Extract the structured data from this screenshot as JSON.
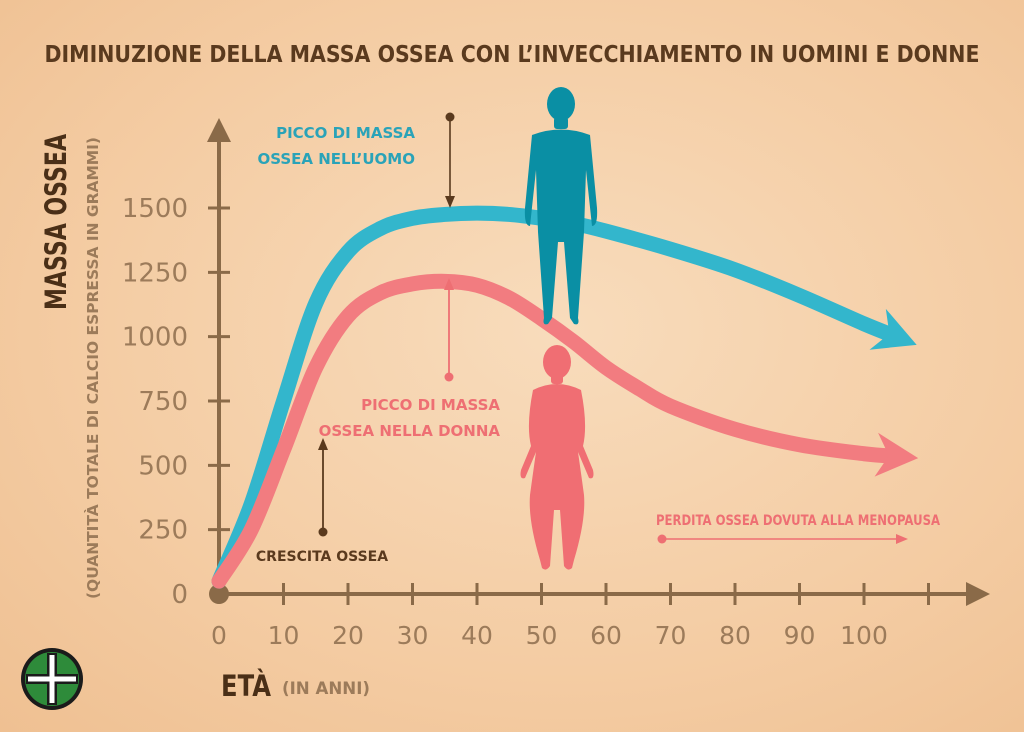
{
  "chart_data": {
    "type": "line",
    "title": "DIMINUZIONE DELLA MASSA OSSEA CON L’INVECCHIAMENTO IN UOMINI E DONNE",
    "ylabel": "MASSA OSSEA",
    "ylabel_sub": "(QUANTITÀ TOTALE DI CALCIO ESPRESSA IN GRAMMI)",
    "xlabel": "ETÀ",
    "xlabel_sub": "(IN ANNI)",
    "xlim": [
      0,
      110
    ],
    "ylim": [
      0,
      1700
    ],
    "x_ticks": [
      0,
      10,
      20,
      30,
      40,
      50,
      60,
      70,
      80,
      90,
      100
    ],
    "y_ticks": [
      0,
      250,
      500,
      750,
      1000,
      1250,
      1500
    ],
    "series": [
      {
        "color": "#33b6cc",
        "points": [
          [
            0,
            50
          ],
          [
            5,
            350
          ],
          [
            10,
            750
          ],
          [
            15,
            1130
          ],
          [
            20,
            1330
          ],
          [
            25,
            1420
          ],
          [
            30,
            1460
          ],
          [
            35,
            1475
          ],
          [
            40,
            1480
          ],
          [
            45,
            1475
          ],
          [
            50,
            1460
          ],
          [
            55,
            1440
          ],
          [
            60,
            1410
          ],
          [
            70,
            1340
          ],
          [
            80,
            1260
          ],
          [
            90,
            1160
          ],
          [
            100,
            1050
          ],
          [
            105,
            1000
          ]
        ]
      },
      {
        "color": "#f27c80",
        "points": [
          [
            0,
            50
          ],
          [
            5,
            250
          ],
          [
            10,
            560
          ],
          [
            15,
            880
          ],
          [
            20,
            1080
          ],
          [
            25,
            1170
          ],
          [
            30,
            1205
          ],
          [
            35,
            1215
          ],
          [
            40,
            1200
          ],
          [
            45,
            1150
          ],
          [
            50,
            1070
          ],
          [
            55,
            980
          ],
          [
            60,
            880
          ],
          [
            65,
            800
          ],
          [
            70,
            730
          ],
          [
            80,
            640
          ],
          [
            90,
            580
          ],
          [
            100,
            545
          ],
          [
            105,
            535
          ]
        ]
      }
    ],
    "annotations": {
      "male_peak": {
        "text_line1": "PICCO DI MASSA",
        "text_line2": "OSSEA NELL’UOMO",
        "color": "#2aa3b8",
        "x": 36,
        "y": 1480
      },
      "female_peak": {
        "text_line1": "PICCO DI MASSA",
        "text_line2": "OSSEA NELLA DONNA",
        "color": "#ee6f73",
        "x": 36,
        "y": 1215
      },
      "growth": {
        "text": "CRESCITA OSSEA",
        "color": "#5a3a1e"
      },
      "menopause": {
        "text": "PERDITA OSSEA DOVUTA ALLA MENOPAUSA",
        "color": "#ee6f73"
      }
    },
    "grid": false,
    "axis_color": "#8a6a48",
    "tick_label_color": "#9c7b5a",
    "title_color": "#5a3a1e"
  }
}
